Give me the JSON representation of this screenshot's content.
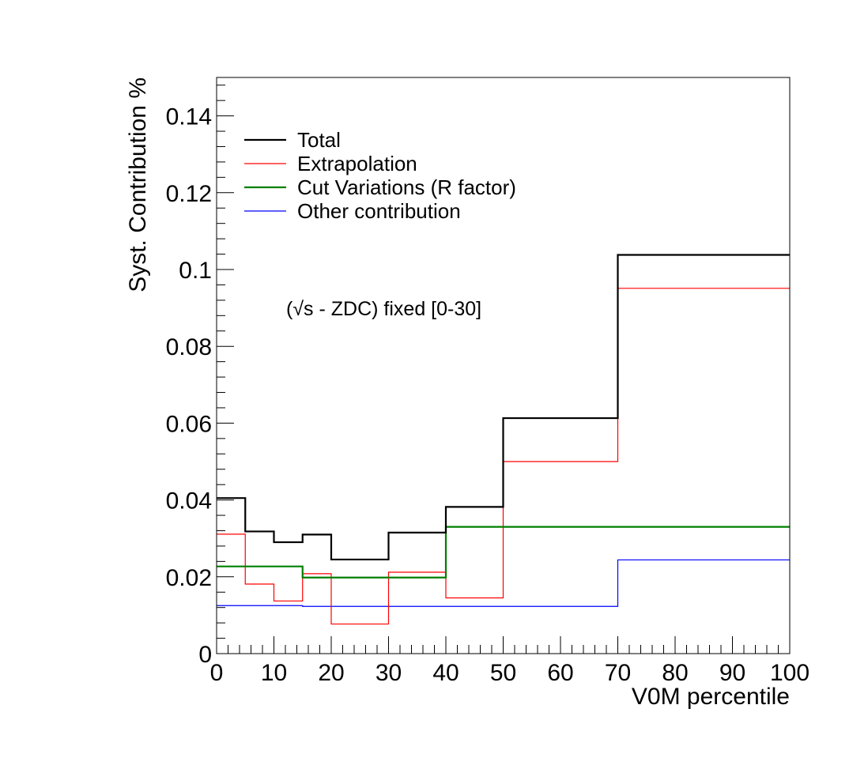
{
  "chart_data": {
    "type": "step",
    "xlabel": "V0M percentile",
    "ylabel": "Syst. Contribution %",
    "annotation": "(√s - ZDC) fixed [0-30]",
    "xlim": [
      0,
      100
    ],
    "ylim": [
      0,
      0.15
    ],
    "xticks": [
      0,
      10,
      20,
      30,
      40,
      50,
      60,
      70,
      80,
      90,
      100
    ],
    "xtick_labels": [
      "0",
      "10",
      "20",
      "30",
      "40",
      "50",
      "60",
      "70",
      "80",
      "90",
      "100"
    ],
    "yticks": [
      0,
      0.02,
      0.04,
      0.06,
      0.08,
      0.1,
      0.12,
      0.14
    ],
    "ytick_labels": [
      "0",
      "0.02",
      "0.04",
      "0.06",
      "0.08",
      "0.1",
      "0.12",
      "0.14"
    ],
    "grid": false,
    "legend_position": "top-left",
    "bin_edges": [
      0,
      5,
      10,
      15,
      20,
      30,
      40,
      50,
      70,
      100
    ],
    "series": [
      {
        "name": "Total",
        "color": "#000000",
        "values": [
          0.0405,
          0.0318,
          0.029,
          0.031,
          0.0245,
          0.0315,
          0.0382,
          0.0613,
          0.1038
        ]
      },
      {
        "name": "Extrapolation",
        "color": "#ff0000",
        "values": [
          0.0311,
          0.0181,
          0.0137,
          0.0208,
          0.0077,
          0.0212,
          0.0145,
          0.05,
          0.0951
        ]
      },
      {
        "name": "Cut Variations (R factor)",
        "color": "#008000",
        "values": [
          0.0227,
          0.0227,
          0.0227,
          0.0198,
          0.0198,
          0.0198,
          0.033,
          0.033,
          0.033
        ]
      },
      {
        "name": "Other contribution",
        "color": "#0000ff",
        "values": [
          0.0125,
          0.0125,
          0.0125,
          0.0123,
          0.0123,
          0.0123,
          0.0123,
          0.0123,
          0.0244
        ]
      }
    ]
  }
}
